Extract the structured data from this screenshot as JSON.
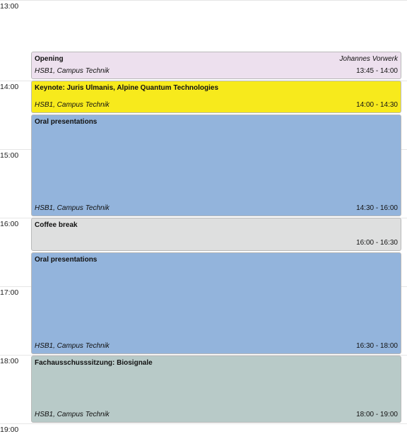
{
  "hours": [
    "13:00",
    "14:00",
    "15:00",
    "16:00",
    "17:00",
    "18:00",
    "19:00"
  ],
  "events": [
    {
      "title": "Opening",
      "speaker": "Johannes Vorwerk",
      "location": "HSB1, Campus Technik",
      "time": "13:45 - 14:00",
      "color": "#ede0ee"
    },
    {
      "title": "Keynote: Juris Ulmanis, Alpine Quantum Technologies",
      "location": "HSB1, Campus Technik",
      "time": "14:00 - 14:30",
      "color": "#f7ea1c"
    },
    {
      "title": "Oral presentations",
      "location": "HSB1, Campus Technik",
      "time": "14:30 - 16:00",
      "color": "#93b4dc"
    },
    {
      "title": "Coffee break",
      "location": "",
      "time": "16:00 - 16:30",
      "color": "#dedfdf"
    },
    {
      "title": "Oral presentations",
      "location": "HSB1, Campus Technik",
      "time": "16:30 - 18:00",
      "color": "#93b4dc"
    },
    {
      "title": "Fachausschusssitzung: Biosignale",
      "location": "HSB1, Campus Technik",
      "time": "18:00 - 19:00",
      "color": "#b8cac8"
    }
  ]
}
